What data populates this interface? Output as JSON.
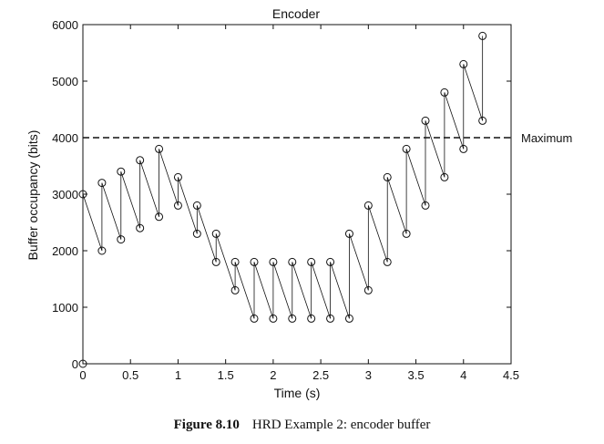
{
  "chart_data": {
    "type": "line",
    "title": "Encoder",
    "xlabel": "Time (s)",
    "ylabel": "Buffer occupancy (bits)",
    "xlim": [
      0,
      4.5
    ],
    "ylim": [
      0,
      6000
    ],
    "xticks": [
      "0",
      "0.5",
      "1",
      "1.5",
      "2",
      "2.5",
      "3",
      "3.5",
      "4",
      "4.5"
    ],
    "yticks": [
      "0",
      "1000",
      "2000",
      "3000",
      "4000",
      "5000",
      "6000"
    ],
    "xtick_values": [
      0,
      0.5,
      1,
      1.5,
      2,
      2.5,
      3,
      3.5,
      4,
      4.5
    ],
    "ytick_values": [
      0,
      1000,
      2000,
      3000,
      4000,
      5000,
      6000
    ],
    "grid": false,
    "marker": "open-circle",
    "series": [
      {
        "x": [
          0,
          0,
          0.2,
          0.2,
          0.4,
          0.4,
          0.6,
          0.6,
          0.8,
          0.8,
          1.0,
          1.0,
          1.2,
          1.2,
          1.4,
          1.4,
          1.6,
          1.6,
          1.8,
          1.8,
          2.0,
          2.0,
          2.2,
          2.2,
          2.4,
          2.4,
          2.6,
          2.6,
          2.8,
          2.8,
          3.0,
          3.0,
          3.2,
          3.2,
          3.4,
          3.4,
          3.6,
          3.6,
          3.8,
          3.8,
          4.0,
          4.0,
          4.2,
          4.2
        ],
        "y": [
          0,
          3000,
          2000,
          3200,
          2200,
          3400,
          2400,
          3600,
          2600,
          3800,
          2800,
          3300,
          2300,
          2800,
          1800,
          2300,
          1300,
          1800,
          800,
          1800,
          800,
          1800,
          800,
          1800,
          800,
          1800,
          800,
          1800,
          800,
          2300,
          1300,
          2800,
          1800,
          3300,
          2300,
          3800,
          2800,
          4300,
          3300,
          4800,
          3800,
          5300,
          4300,
          5800
        ]
      }
    ],
    "reference_line": {
      "y": 4000,
      "label": "Maximum",
      "style": "dashed"
    }
  },
  "caption": {
    "figure": "Figure 8.10",
    "text": "HRD Example 2: encoder buffer"
  }
}
